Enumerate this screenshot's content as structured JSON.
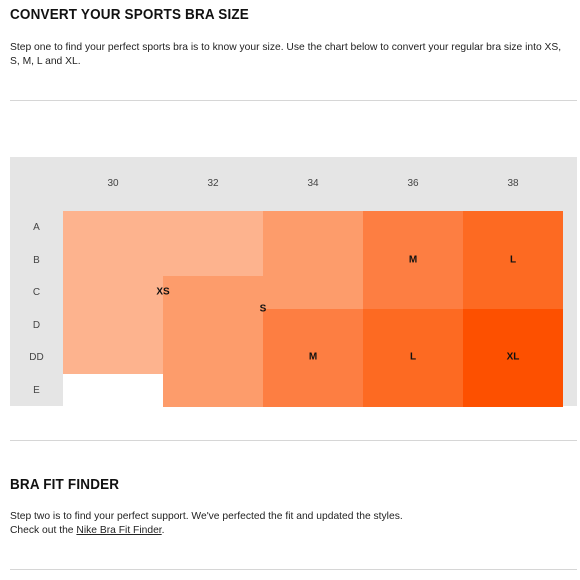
{
  "section1": {
    "title": "CONVERT YOUR SPORTS BRA SIZE",
    "text": "Step one to find your perfect sports bra is to know your size. Use the chart below to convert your regular bra size into XS, S, M, L and XL."
  },
  "size_chart": {
    "band_sizes": [
      "30",
      "32",
      "34",
      "36",
      "38"
    ],
    "cup_sizes": [
      "A",
      "B",
      "C",
      "D",
      "DD",
      "E"
    ],
    "grid_rows": [
      [
        "XS",
        "XS",
        "S",
        "M",
        "L"
      ],
      [
        "XS",
        "XS",
        "S",
        "M",
        "L"
      ],
      [
        "XS",
        "S",
        "S",
        "M",
        "L"
      ],
      [
        "XS",
        "S",
        "M",
        "L",
        "XL"
      ],
      [
        "XS",
        "S",
        "M",
        "L",
        "XL"
      ],
      [
        "",
        "S",
        "M",
        "L",
        "XL"
      ]
    ],
    "size_colors": {
      "XS": "#fdb38e",
      "S": "#fd9c6b",
      "M": "#fd7e42",
      "L": "#fd6a22",
      "XL": "#fd5000"
    },
    "empty_color": "#ffffff"
  },
  "section2": {
    "title": "BRA FIT FINDER",
    "text_before": "Step two is to find your perfect support. We've perfected the fit and updated the styles.",
    "text_check": "Check out the ",
    "link_label": "Nike Bra Fit Finder",
    "text_after": "."
  }
}
